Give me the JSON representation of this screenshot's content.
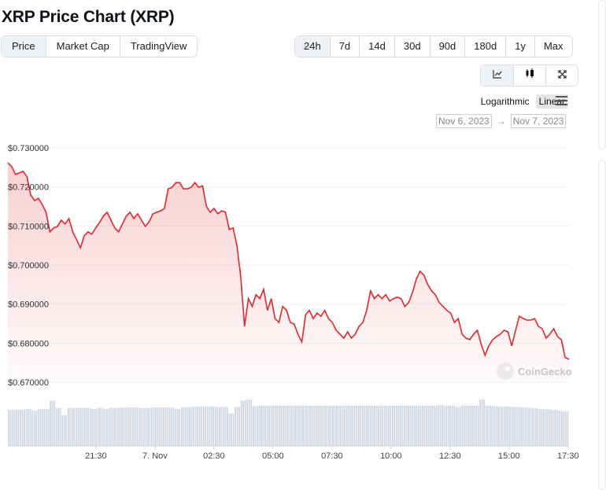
{
  "title": "XRP Price Chart (XRP)",
  "tabs": [
    "Price",
    "Market Cap",
    "TradingView"
  ],
  "ranges": [
    "24h",
    "7d",
    "14d",
    "30d",
    "90d",
    "180d",
    "1y",
    "Max"
  ],
  "chart_types": [
    {
      "icon": "line-chart-icon",
      "glyph": "⟋"
    },
    {
      "icon": "candlestick-icon",
      "glyph": "▮"
    },
    {
      "icon": "fullscreen-icon",
      "glyph": "⛶"
    }
  ],
  "scale": {
    "log": "Logarithmic",
    "linear": "Linear"
  },
  "dates": {
    "from": "Nov 6, 2023",
    "arrow": "→",
    "to": "Nov 7, 2023"
  },
  "watermark": "CoinGecko",
  "colors": {
    "line": "#e0282c",
    "volume": "#cdd6e2",
    "grid": "#eef0f3"
  },
  "chart_data": {
    "type": "line",
    "title": "XRP Price Chart (XRP)",
    "ylim": [
      0.67,
      0.73
    ],
    "yticks": [
      "$0.730000",
      "$0.720000",
      "$0.710000",
      "$0.700000",
      "$0.690000",
      "$0.680000",
      "$0.670000"
    ],
    "ytick_values": [
      0.73,
      0.72,
      0.71,
      0.7,
      0.69,
      0.68,
      0.67
    ],
    "x_span_hours": 23.77,
    "xticks": [
      {
        "label": "21:30",
        "h": 3.73
      },
      {
        "label": "7. Nov",
        "h": 6.23
      },
      {
        "label": "02:30",
        "h": 8.73
      },
      {
        "label": "05:00",
        "h": 11.23
      },
      {
        "label": "07:30",
        "h": 13.73
      },
      {
        "label": "10:00",
        "h": 16.23
      },
      {
        "label": "12:30",
        "h": 18.73
      },
      {
        "label": "15:00",
        "h": 21.23
      },
      {
        "label": "17:30",
        "h": 23.73
      }
    ],
    "prices": [
      0.7262,
      0.7252,
      0.7232,
      0.7236,
      0.724,
      0.7226,
      0.7179,
      0.7165,
      0.7171,
      0.7155,
      0.7135,
      0.7085,
      0.7095,
      0.7099,
      0.7115,
      0.7105,
      0.7119,
      0.7085,
      0.7065,
      0.7044,
      0.7075,
      0.7085,
      0.7079,
      0.7095,
      0.7109,
      0.7125,
      0.7135,
      0.7115,
      0.7095,
      0.7085,
      0.7105,
      0.7125,
      0.7135,
      0.7119,
      0.7131,
      0.7115,
      0.7099,
      0.7111,
      0.7131,
      0.7135,
      0.7139,
      0.7145,
      0.7195,
      0.7199,
      0.7211,
      0.7211,
      0.7195,
      0.7195,
      0.7199,
      0.7211,
      0.7199,
      0.7203,
      0.7151,
      0.7135,
      0.7145,
      0.7131,
      0.7139,
      0.7135,
      0.7091,
      0.7095,
      0.7051,
      0.697,
      0.6843,
      0.6914,
      0.6894,
      0.6924,
      0.6914,
      0.6938,
      0.6884,
      0.6914,
      0.6863,
      0.6853,
      0.6894,
      0.6884,
      0.6853,
      0.6849,
      0.6823,
      0.6803,
      0.6873,
      0.6884,
      0.6863,
      0.6877,
      0.6869,
      0.6884,
      0.6863,
      0.6853,
      0.6833,
      0.6823,
      0.6813,
      0.6829,
      0.6813,
      0.6823,
      0.6843,
      0.6853,
      0.6884,
      0.6934,
      0.6914,
      0.6924,
      0.6914,
      0.6924,
      0.6908,
      0.6914,
      0.6918,
      0.6914,
      0.6894,
      0.6904,
      0.693,
      0.6964,
      0.6984,
      0.6974,
      0.695,
      0.6934,
      0.6924,
      0.6904,
      0.6894,
      0.6884,
      0.6877,
      0.6853,
      0.6863,
      0.6823,
      0.6813,
      0.6809,
      0.6823,
      0.6833,
      0.6797,
      0.6769,
      0.6793,
      0.6809,
      0.6817,
      0.6823,
      0.6833,
      0.6829,
      0.6793,
      0.6833,
      0.6869,
      0.6863,
      0.6859,
      0.6859,
      0.6863,
      0.6843,
      0.6837,
      0.6813,
      0.6823,
      0.6837,
      0.6817,
      0.6809,
      0.6763,
      0.6759
    ],
    "volumes_relative": [
      0.78,
      0.78,
      0.78,
      0.8,
      0.76,
      0.8,
      0.8,
      0.98,
      0.82,
      0.66,
      0.82,
      0.82,
      0.82,
      0.82,
      0.8,
      0.82,
      0.8,
      0.82,
      0.82,
      0.83,
      0.83,
      0.83,
      0.82,
      0.82,
      0.83,
      0.83,
      0.83,
      0.83,
      0.8,
      0.83,
      0.84,
      0.85,
      0.85,
      0.85,
      0.85,
      0.84,
      0.84,
      0.7,
      0.84,
      0.98,
      1.0,
      0.86,
      0.87,
      0.87,
      0.87,
      0.87,
      0.87,
      0.87,
      0.87,
      0.87,
      0.87,
      0.87,
      0.87,
      0.87,
      0.87,
      0.87,
      0.87,
      0.87,
      0.87,
      0.87,
      0.87,
      0.87,
      0.87,
      0.87,
      0.87,
      0.87,
      0.87,
      0.87,
      0.87,
      0.87,
      0.87,
      0.87,
      0.88,
      0.87,
      0.87,
      0.84,
      0.87,
      0.87,
      0.87,
      1.0,
      0.87,
      0.86,
      0.85,
      0.85,
      0.84,
      0.84,
      0.83,
      0.82,
      0.81,
      0.8,
      0.79,
      0.78,
      0.76,
      0.75
    ]
  }
}
